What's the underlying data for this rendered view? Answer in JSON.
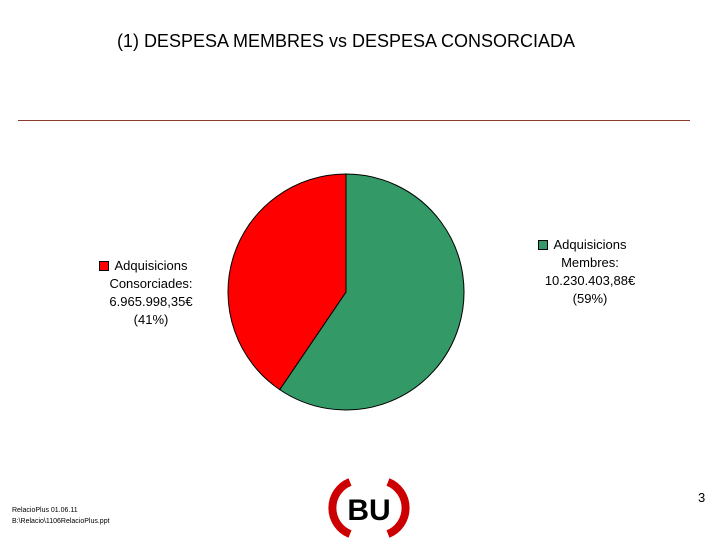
{
  "slide": {
    "title": "(1) DESPESA MEMBRES vs DESPESA CONSORCIADA",
    "page_number": "3",
    "footer": [
      "RelacioPlus 01.06.11",
      "B:\\Relacio\\1106RelacioPlus.ppt"
    ],
    "logo_text": "BU"
  },
  "chart_data": {
    "type": "pie",
    "title": "(1) DESPESA MEMBRES vs DESPESA CONSORCIADA",
    "slices": [
      {
        "name": "Adquisicions Membres",
        "label_lines": [
          "Adquisicions",
          "Membres:",
          "10.230.403,88€",
          "(59%)"
        ],
        "value": 10230403.88,
        "percent": 59,
        "color": "#339966"
      },
      {
        "name": "Adquisicions Consorciades",
        "label_lines": [
          "Adquisicions",
          "Consorciades:",
          "6.965.998,35€",
          "(41%)"
        ],
        "value": 6965998.35,
        "percent": 41,
        "color": "#ff0000"
      }
    ],
    "start_angle_deg": 0,
    "direction": "clockwise",
    "legend_placement": "left-and-right"
  }
}
